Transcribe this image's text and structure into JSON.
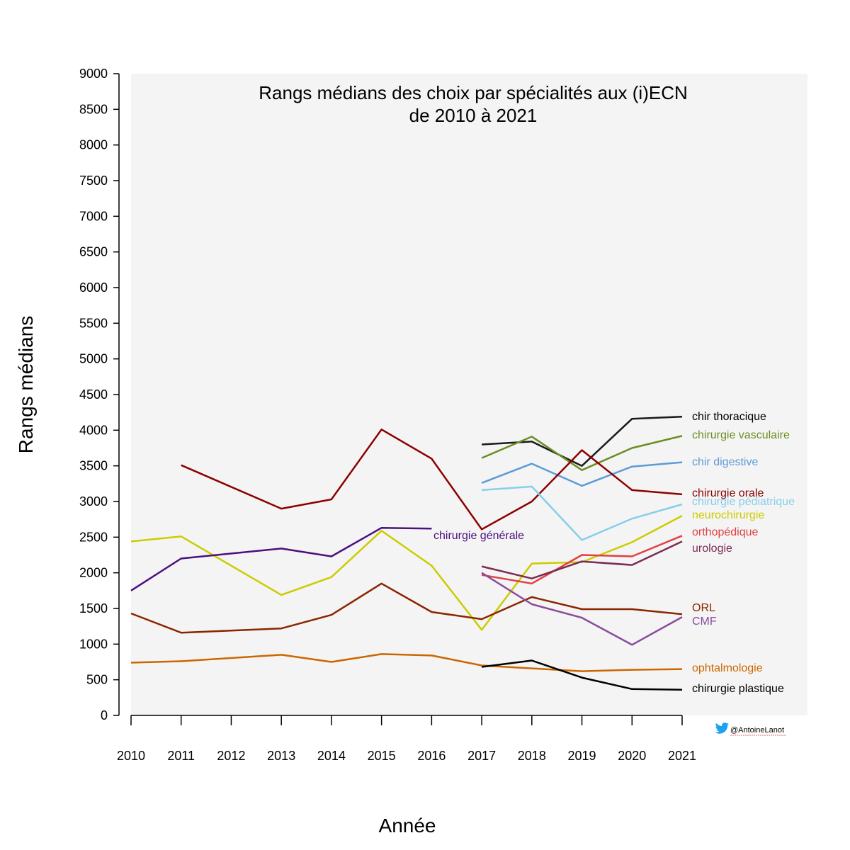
{
  "credit": {
    "handle": "@AntoineLanot",
    "icon": "twitter-bird-icon",
    "icon_color": "#1da1f2"
  },
  "chart_data": {
    "type": "line",
    "title_line1": "Rangs médians des choix par spécialités aux (i)ECN",
    "title_line2": "de 2010 à 2021",
    "xlabel": "Année",
    "ylabel": "Rangs médians",
    "ylim": [
      0,
      9000
    ],
    "yticks": [
      "0",
      "500",
      "1000",
      "1500",
      "2000",
      "2500",
      "3000",
      "3500",
      "4000",
      "4500",
      "5000",
      "5500",
      "6000",
      "6500",
      "7000",
      "7500",
      "8000",
      "8500",
      "9000"
    ],
    "xticks": [
      "2010",
      "2011",
      "2012",
      "2013",
      "2014",
      "2015",
      "2016",
      "2017",
      "2018",
      "2019",
      "2020",
      "2021"
    ],
    "x": [
      2010,
      2011,
      2012,
      2013,
      2014,
      2015,
      2016,
      2017,
      2018,
      2019,
      2020,
      2021
    ],
    "background": "#f4f4f4",
    "grid": false,
    "legend": "direct labels at right of lines",
    "series": [
      {
        "name": "chir thoracique",
        "color": "#1a1a1a",
        "label_color": "#000000",
        "values": [
          null,
          null,
          null,
          null,
          null,
          null,
          null,
          3800,
          3840,
          3500,
          4160,
          4190
        ]
      },
      {
        "name": "chirurgie vasculaire",
        "color": "#6b8e23",
        "label_color": "#6b8e23",
        "values": [
          null,
          null,
          null,
          null,
          null,
          null,
          null,
          3610,
          3910,
          3440,
          3750,
          3920
        ]
      },
      {
        "name": "chir digestive",
        "color": "#5b9bd5",
        "label_color": "#5b9bd5",
        "values": [
          null,
          null,
          null,
          null,
          null,
          null,
          null,
          3260,
          3530,
          3220,
          3490,
          3550
        ]
      },
      {
        "name": "chirurgie orale",
        "color": "#8b0000",
        "label_color": "#8b0000",
        "values": [
          null,
          3510,
          null,
          2900,
          3030,
          4010,
          3600,
          2610,
          3000,
          3720,
          3160,
          3100
        ]
      },
      {
        "name": "chirurgie pédiatrique",
        "color": "#87ceeb",
        "label_color": "#87ceeb",
        "values": [
          null,
          null,
          null,
          null,
          null,
          null,
          null,
          3160,
          3210,
          2460,
          2760,
          2960
        ]
      },
      {
        "name": "neurochirurgie",
        "color": "#cccc00",
        "label_color": "#cccc00",
        "values": [
          2440,
          2510,
          null,
          1690,
          1940,
          2590,
          2100,
          1200,
          2130,
          2150,
          2430,
          2800
        ]
      },
      {
        "name": "orthopédique",
        "color": "#e04040",
        "label_color": "#e04040",
        "values": [
          null,
          null,
          null,
          null,
          null,
          null,
          null,
          1970,
          1850,
          2250,
          2230,
          2520
        ]
      },
      {
        "name": "urologie",
        "color": "#7b2c55",
        "label_color": "#7b2c55",
        "values": [
          null,
          null,
          null,
          null,
          null,
          null,
          null,
          2090,
          1920,
          2160,
          2110,
          2440
        ]
      },
      {
        "name": "chirurgie générale",
        "color": "#4b0f80",
        "label_color": "#4b0f80",
        "values": [
          1750,
          2200,
          null,
          2340,
          2230,
          2630,
          2620,
          null,
          null,
          null,
          null,
          null
        ]
      },
      {
        "name": "ORL",
        "color": "#8b2500",
        "label_color": "#8b2500",
        "values": [
          1430,
          1160,
          null,
          1220,
          1410,
          1850,
          1450,
          1350,
          1660,
          1490,
          1490,
          1420
        ]
      },
      {
        "name": "CMF",
        "color": "#8b4a9c",
        "label_color": "#8b4a9c",
        "values": [
          null,
          null,
          null,
          null,
          null,
          null,
          null,
          2000,
          1560,
          1370,
          990,
          1380
        ]
      },
      {
        "name": "ophtalmologie",
        "color": "#cc6600",
        "label_color": "#cc6600",
        "values": [
          740,
          760,
          null,
          850,
          750,
          860,
          840,
          700,
          660,
          620,
          640,
          650
        ]
      },
      {
        "name": "chirurgie plastique",
        "color": "#000000",
        "label_color": "#000000",
        "values": [
          null,
          null,
          null,
          null,
          null,
          null,
          null,
          680,
          770,
          530,
          370,
          360
        ]
      }
    ]
  }
}
